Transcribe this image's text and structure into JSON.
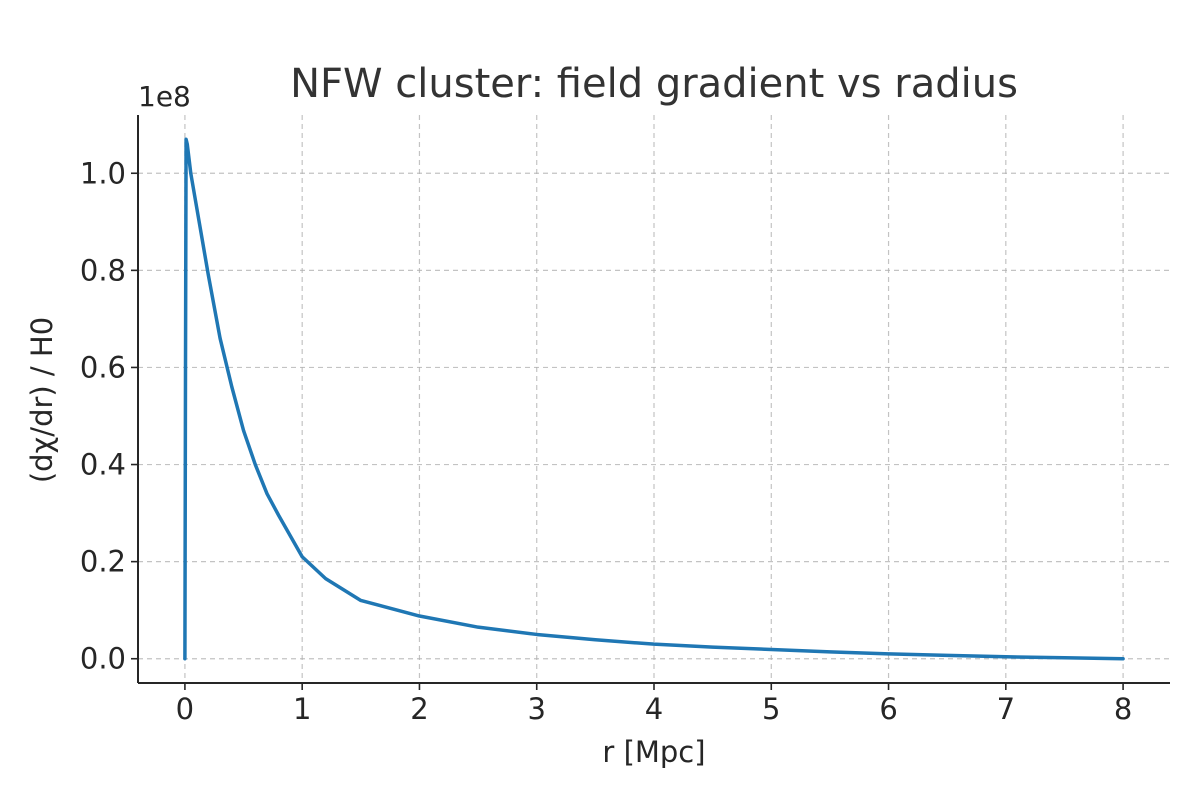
{
  "chart_data": {
    "type": "line",
    "title": "NFW cluster: field gradient vs radius",
    "xlabel": "r [Mpc]",
    "ylabel": "(dχ/dr) / H0",
    "y_offset_label": "1e8",
    "xlim": [
      -0.4,
      8.4
    ],
    "ylim": [
      -0.05,
      1.12
    ],
    "x_ticks": [
      0,
      1,
      2,
      3,
      4,
      5,
      6,
      7,
      8
    ],
    "x_tick_labels": [
      "0",
      "1",
      "2",
      "3",
      "4",
      "5",
      "6",
      "7",
      "8"
    ],
    "y_ticks": [
      0.0,
      0.2,
      0.4,
      0.6,
      0.8,
      1.0
    ],
    "y_tick_labels": [
      "0.0",
      "0.2",
      "0.4",
      "0.6",
      "0.8",
      "1.0"
    ],
    "grid": true,
    "line_color": "#1f77b4",
    "series": [
      {
        "x": [
          0.0,
          0.005,
          0.01,
          0.02,
          0.05,
          0.1,
          0.15,
          0.2,
          0.3,
          0.4,
          0.5,
          0.6,
          0.7,
          0.8,
          1.0,
          1.2,
          1.5,
          2.0,
          2.5,
          3.0,
          3.5,
          4.0,
          4.5,
          5.0,
          5.5,
          6.0,
          6.5,
          7.0,
          7.5,
          8.0
        ],
        "y": [
          0.0,
          0.6,
          1.07,
          1.06,
          1.0,
          0.93,
          0.86,
          0.79,
          0.66,
          0.56,
          0.47,
          0.4,
          0.34,
          0.295,
          0.21,
          0.165,
          0.12,
          0.088,
          0.065,
          0.05,
          0.039,
          0.03,
          0.024,
          0.019,
          0.014,
          0.01,
          0.007,
          0.004,
          0.002,
          0.0
        ]
      }
    ]
  }
}
